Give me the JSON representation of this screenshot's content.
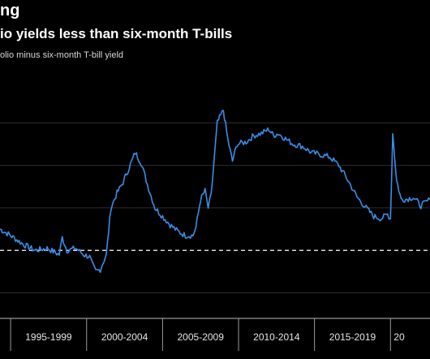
{
  "header": {
    "title": "ng",
    "subtitle": "io yields less than six-month T-bills",
    "caption": "olio minus six-month T-bill yield"
  },
  "colors": {
    "background": "#000000",
    "line": "#3a8ee6",
    "grid": "#2e2e2e",
    "zero_line": "#ffffff",
    "text": "#ffffff"
  },
  "chart_data": {
    "type": "line",
    "title": "",
    "xlabel": "",
    "ylabel": "",
    "grid": true,
    "x_tick_labels": [
      "1995-1999",
      "2000-2004",
      "2005-2009",
      "2010-2014",
      "2015-2019",
      "20"
    ],
    "xlim": [
      1994.3,
      2022.6
    ],
    "ylim": [
      -1.6,
      4.4
    ],
    "y_gridlines": [
      -1,
      0,
      1,
      2,
      3
    ],
    "reference_line": 0,
    "series": [
      {
        "x": [
          1994.3,
          1995.0,
          1995.8,
          1996.6,
          1997.4,
          1998.2,
          1998.4,
          1998.7,
          1999.3,
          1999.8,
          2000.2,
          2000.4,
          2000.6,
          2000.9,
          2001.3,
          2001.6,
          2002.0,
          2002.4,
          2002.8,
          2003.2,
          2003.6,
          2004.0,
          2004.5,
          2005.0,
          2005.5,
          2006.0,
          2006.5,
          2007.0,
          2007.2,
          2007.5,
          2007.8,
          2008.0,
          2008.2,
          2008.6,
          2009.0,
          2009.3,
          2009.6,
          2009.9,
          2010.5,
          2011.0,
          2011.5,
          2012.0,
          2012.3,
          2012.6,
          2013.0,
          2013.6,
          2014.2,
          2014.8,
          2015.4,
          2016.0,
          2016.6,
          2017.2,
          2017.8,
          2018.4,
          2018.9,
          2019.4,
          2019.8,
          2020.0,
          2020.15,
          2020.4,
          2020.7,
          2021.0,
          2021.5,
          2022.0,
          2022.6
        ],
        "y": [
          0.5,
          0.35,
          0.15,
          0.0,
          0.05,
          -0.1,
          0.3,
          0.0,
          0.05,
          -0.1,
          -0.15,
          -0.35,
          -0.5,
          -0.45,
          -0.1,
          1.0,
          1.35,
          1.6,
          1.95,
          2.3,
          2.05,
          1.55,
          1.0,
          0.8,
          0.6,
          0.45,
          0.35,
          0.35,
          0.55,
          1.2,
          1.4,
          1.0,
          1.3,
          3.0,
          3.3,
          2.6,
          2.1,
          2.5,
          2.55,
          2.7,
          2.75,
          2.85,
          2.7,
          2.75,
          2.65,
          2.5,
          2.45,
          2.3,
          2.25,
          2.2,
          2.0,
          1.65,
          1.25,
          1.0,
          0.8,
          0.75,
          0.85,
          0.75,
          2.75,
          1.65,
          1.2,
          1.2,
          1.25,
          1.05,
          1.2
        ]
      }
    ]
  }
}
